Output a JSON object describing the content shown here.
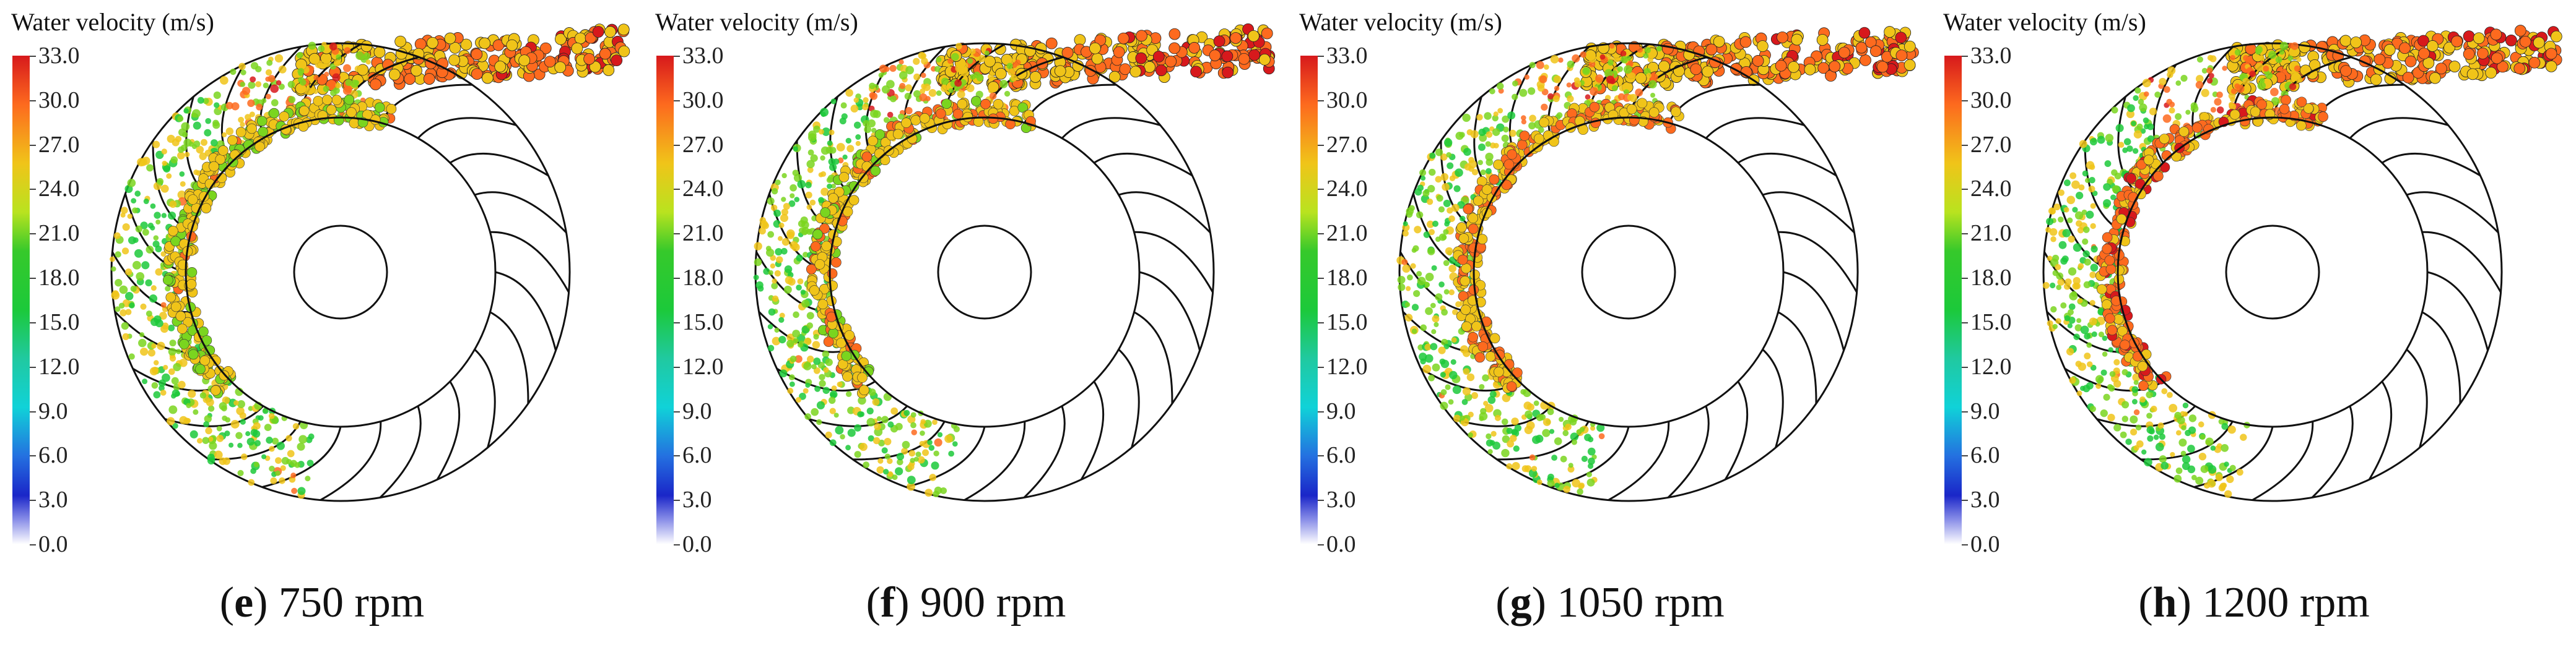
{
  "panels": [
    {
      "letter": "e",
      "label": "750 rpm",
      "legend_title": "Water velocity (m/s)"
    },
    {
      "letter": "f",
      "label": "900 rpm",
      "legend_title": "Water velocity (m/s)"
    },
    {
      "letter": "g",
      "label": "1050 rpm",
      "legend_title": "Water velocity (m/s)"
    },
    {
      "letter": "h",
      "label": "1200 rpm",
      "legend_title": "Water velocity (m/s)"
    }
  ],
  "colorbar": {
    "ticks": [
      "33.0",
      "30.0",
      "27.0",
      "24.0",
      "21.0",
      "18.0",
      "15.0",
      "12.0",
      "9.0",
      "6.0",
      "3.0",
      "0.0"
    ],
    "min": 0.0,
    "max": 33.0,
    "colors": {
      "high": "#d7191c",
      "mid": "#1cc93a",
      "low": "#1a26c8",
      "zero": "#ffffff"
    }
  }
}
